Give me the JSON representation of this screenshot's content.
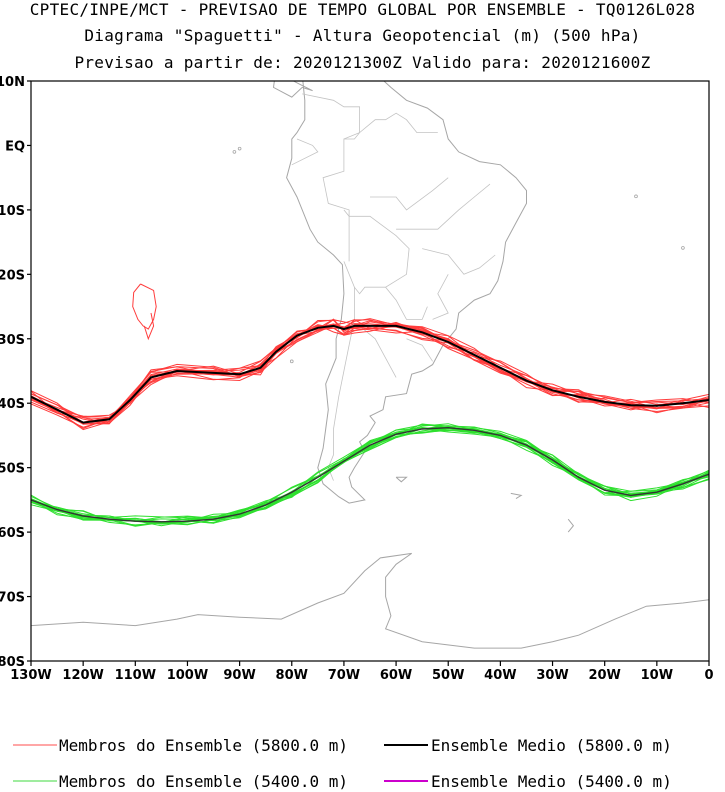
{
  "header": {
    "line1": "CPTEC/INPE/MCT - PREVISAO DE TEMPO GLOBAL POR ENSEMBLE - TQ0126L028",
    "line2": "Diagrama \"Spaguetti\" - Altura Geopotencial (m) (500 hPa)",
    "line3": "Previsao a partir de: 2020121300Z  Valido para: 2020121600Z"
  },
  "map": {
    "lon_range": [
      -130,
      0
    ],
    "lat_range": [
      -80,
      10
    ],
    "lat_labels": [
      "10N",
      "EQ",
      "10S",
      "20S",
      "30S",
      "40S",
      "50S",
      "60S",
      "70S",
      "80S"
    ],
    "lat_values": [
      10,
      0,
      -10,
      -20,
      -30,
      -40,
      -50,
      -60,
      -70,
      -80
    ],
    "lon_labels": [
      "130W",
      "120W",
      "110W",
      "100W",
      "90W",
      "80W",
      "70W",
      "60W",
      "50W",
      "40W",
      "30W",
      "20W",
      "10W",
      "0"
    ],
    "lon_values": [
      -130,
      -120,
      -110,
      -100,
      -90,
      -80,
      -70,
      -60,
      -50,
      -40,
      -30,
      -20,
      -10,
      0
    ],
    "colors": {
      "ens5800": "#ff3c3c",
      "mean5800": "#000000",
      "ens5400": "#2ee02e",
      "mean5400": "#cc00cc",
      "coast": "#a6a6a6"
    },
    "contour_5800_mean": [
      [
        -130,
        -39
      ],
      [
        -125,
        -41
      ],
      [
        -120,
        -43
      ],
      [
        -115,
        -42.5
      ],
      [
        -111,
        -39.5
      ],
      [
        -107,
        -36
      ],
      [
        -102,
        -35
      ],
      [
        -95,
        -35.3
      ],
      [
        -90,
        -35.5
      ],
      [
        -86,
        -34.5
      ],
      [
        -83,
        -32
      ],
      [
        -79,
        -29.5
      ],
      [
        -75,
        -28.3
      ],
      [
        -72,
        -28
      ],
      [
        -70,
        -28.5
      ],
      [
        -68,
        -28
      ],
      [
        -65,
        -28
      ],
      [
        -60,
        -28
      ],
      [
        -55,
        -29
      ],
      [
        -50,
        -30.5
      ],
      [
        -45,
        -32.5
      ],
      [
        -40,
        -34.5
      ],
      [
        -35,
        -36.5
      ],
      [
        -30,
        -38
      ],
      [
        -25,
        -39
      ],
      [
        -20,
        -39.8
      ],
      [
        -15,
        -40.3
      ],
      [
        -10,
        -40.4
      ],
      [
        -5,
        -40
      ],
      [
        0,
        -39.5
      ]
    ],
    "contour_5400_mean": [
      [
        -130,
        -55
      ],
      [
        -125,
        -56.5
      ],
      [
        -120,
        -57.5
      ],
      [
        -115,
        -58
      ],
      [
        -110,
        -58.3
      ],
      [
        -105,
        -58.4
      ],
      [
        -100,
        -58.3
      ],
      [
        -95,
        -58
      ],
      [
        -90,
        -57.2
      ],
      [
        -85,
        -55.8
      ],
      [
        -80,
        -53.8
      ],
      [
        -75,
        -51.5
      ],
      [
        -70,
        -49
      ],
      [
        -65,
        -46.5
      ],
      [
        -60,
        -44.8
      ],
      [
        -55,
        -44
      ],
      [
        -50,
        -43.8
      ],
      [
        -45,
        -44.2
      ],
      [
        -40,
        -45
      ],
      [
        -35,
        -46.5
      ],
      [
        -30,
        -48.8
      ],
      [
        -25,
        -51.5
      ],
      [
        -20,
        -53.5
      ],
      [
        -15,
        -54.3
      ],
      [
        -10,
        -53.8
      ],
      [
        -5,
        -52.5
      ],
      [
        0,
        -51
      ]
    ],
    "island_loop": [
      [
        -109,
        -21.5
      ],
      [
        -106.5,
        -22.5
      ],
      [
        -106,
        -25
      ],
      [
        -106.5,
        -27
      ],
      [
        -107.5,
        -28.5
      ],
      [
        -108.5,
        -28
      ],
      [
        -109.5,
        -27
      ],
      [
        -110.5,
        -25
      ],
      [
        -110.3,
        -22.8
      ],
      [
        -109,
        -21.5
      ]
    ]
  },
  "legend": [
    {
      "label": "Membros do Ensemble (5800.0 m)",
      "color": "#ff7070"
    },
    {
      "label": "Ensemble Medio (5800.0 m)",
      "color": "#000000"
    },
    {
      "label": "Membros do Ensemble (5400.0 m)",
      "color": "#66e066"
    },
    {
      "label": "Ensemble Medio (5400.0 m)",
      "color": "#cc00cc"
    }
  ]
}
